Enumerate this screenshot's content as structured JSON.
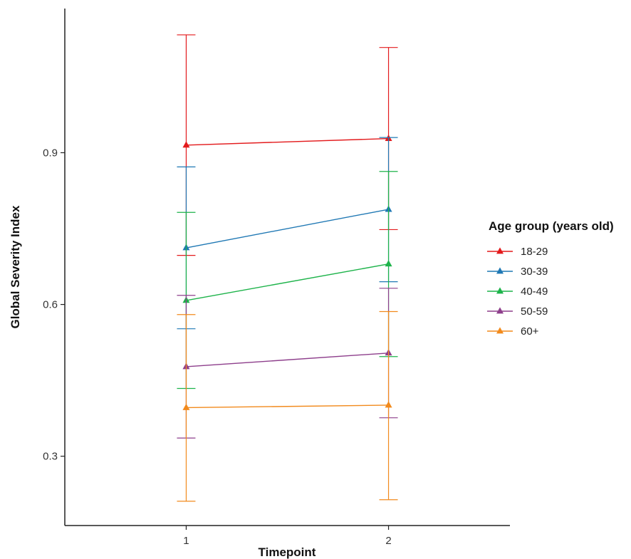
{
  "chart_data": {
    "type": "line",
    "xlabel": "Timepoint",
    "ylabel": "Global Severity Index",
    "x": [
      1,
      2
    ],
    "x_tick_labels": [
      "1",
      "2"
    ],
    "y_ticks": [
      0.3,
      0.6,
      0.9
    ],
    "y_tick_labels": [
      "0.3",
      "0.6",
      "0.9"
    ],
    "xlim": [
      0.4,
      2.6
    ],
    "ylim": [
      0.163,
      1.185
    ],
    "grid": false,
    "error_bars": true,
    "legend": {
      "title": "Age group (years old)",
      "placement": "right"
    },
    "series": [
      {
        "name": "18-29",
        "color": "#e31a1c",
        "values": [
          0.915,
          0.928
        ],
        "lower": [
          0.697,
          0.748
        ],
        "upper": [
          1.133,
          1.108
        ]
      },
      {
        "name": "30-39",
        "color": "#1f78b4",
        "values": [
          0.712,
          0.788
        ],
        "lower": [
          0.552,
          0.645
        ],
        "upper": [
          0.872,
          0.93
        ]
      },
      {
        "name": "40-49",
        "color": "#1db34a",
        "values": [
          0.608,
          0.68
        ],
        "lower": [
          0.434,
          0.497
        ],
        "upper": [
          0.782,
          0.863
        ]
      },
      {
        "name": "50-59",
        "color": "#8e3f8c",
        "values": [
          0.477,
          0.504
        ],
        "lower": [
          0.336,
          0.376
        ],
        "upper": [
          0.618,
          0.632
        ]
      },
      {
        "name": "60+",
        "color": "#f28a1c",
        "values": [
          0.396,
          0.401
        ],
        "lower": [
          0.211,
          0.214
        ],
        "upper": [
          0.58,
          0.586
        ]
      }
    ]
  }
}
